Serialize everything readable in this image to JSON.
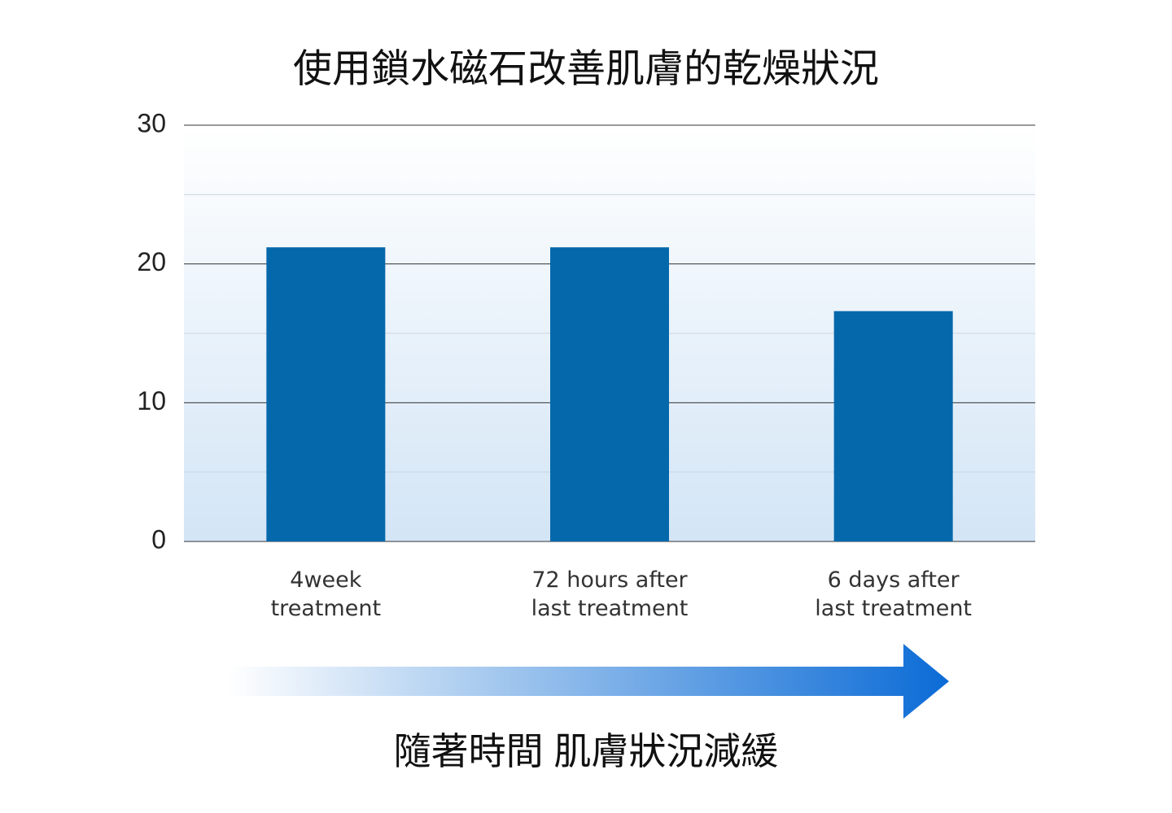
{
  "chart_data": {
    "type": "bar",
    "title": "使用鎖水磁石改善肌膚的乾燥狀況",
    "categories": [
      "4week\ntreatment",
      "72 hours after\nlast treatment",
      "6 days after\nlast treatment"
    ],
    "values": [
      21.2,
      21.2,
      16.6
    ],
    "color": "#0568ab",
    "ylim": [
      0,
      30
    ],
    "yticks": [
      0,
      10,
      20,
      30
    ],
    "minor_yticks": [
      5,
      15,
      25
    ],
    "grid": true,
    "annotation": "隨著時間 肌膚狀況減緩"
  }
}
